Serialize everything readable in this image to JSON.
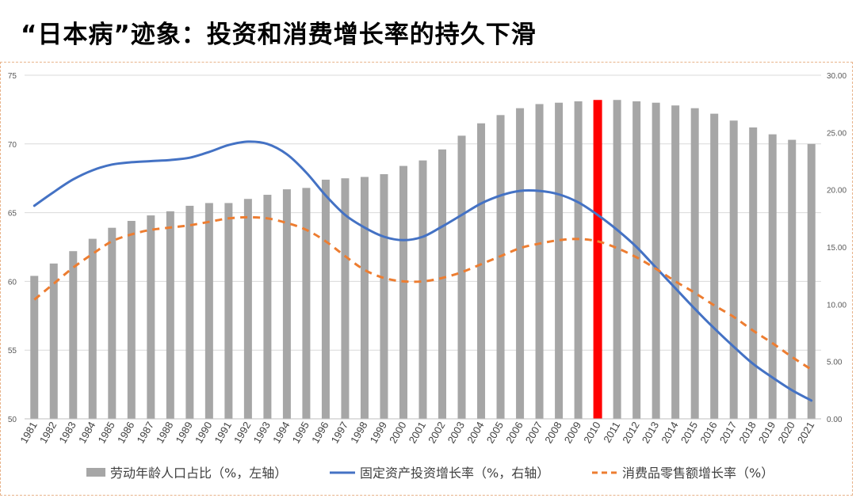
{
  "page": {
    "title": "“日本病”迹象：投资和消费增长率的持久下滑"
  },
  "chart_data": {
    "type": "bar",
    "x": [
      1981,
      1982,
      1983,
      1984,
      1985,
      1986,
      1987,
      1988,
      1989,
      1990,
      1991,
      1992,
      1993,
      1994,
      1995,
      1996,
      1997,
      1998,
      1999,
      2000,
      2001,
      2002,
      2003,
      2004,
      2005,
      2006,
      2007,
      2008,
      2009,
      2010,
      2011,
      2012,
      2013,
      2014,
      2015,
      2016,
      2017,
      2018,
      2019,
      2020,
      2021
    ],
    "x_tick_labels": [
      "1981",
      "1982",
      "1983",
      "1984",
      "1985",
      "1986",
      "1987",
      "1988",
      "1989",
      "1990",
      "1991",
      "1992",
      "1993",
      "1994",
      "1995",
      "1996",
      "1997",
      "1998",
      "1999",
      "2000",
      "2001",
      "2002",
      "2003",
      "2004",
      "2005",
      "2006",
      "2007",
      "2008",
      "2009",
      "2010",
      "2011",
      "2012",
      "2013",
      "2014",
      "2015",
      "2016",
      "2017",
      "2018",
      "2019",
      "2020",
      "2021"
    ],
    "left_axis": {
      "ylim": [
        50,
        75
      ],
      "ticks": [
        "50",
        "55",
        "60",
        "65",
        "70",
        "75"
      ],
      "tick_values": [
        50,
        55,
        60,
        65,
        70,
        75
      ]
    },
    "right_axis": {
      "ylim": [
        0,
        30
      ],
      "ticks": [
        "0.00",
        "5.00",
        "10.00",
        "15.00",
        "20.00",
        "25.00",
        "30.00"
      ],
      "tick_values": [
        0,
        5,
        10,
        15,
        20,
        25,
        30
      ]
    },
    "grid": true,
    "highlight": {
      "x": 2010,
      "color": "#ff0000"
    },
    "legend_position": "bottom",
    "series": [
      {
        "name": "劳动年龄人口占比（%，左轴）",
        "type": "bar",
        "axis": "left",
        "color": "#a6a6a6",
        "values": [
          60.4,
          61.3,
          62.2,
          63.1,
          63.9,
          64.4,
          64.8,
          65.1,
          65.5,
          65.7,
          65.7,
          66.0,
          66.3,
          66.7,
          66.8,
          67.4,
          67.5,
          67.6,
          67.8,
          68.4,
          68.8,
          69.6,
          70.6,
          71.5,
          72.1,
          72.6,
          72.9,
          73.0,
          73.1,
          73.2,
          73.2,
          73.1,
          73.0,
          72.8,
          72.6,
          72.2,
          71.7,
          71.2,
          70.7,
          70.3,
          70.0
        ]
      },
      {
        "name": "固定资产投资增长率（%，右轴）",
        "type": "line",
        "axis": "right",
        "color": "#4472c4",
        "dash": "solid",
        "values": [
          18.6,
          19.8,
          20.9,
          21.7,
          22.2,
          22.4,
          22.5,
          22.6,
          22.8,
          23.3,
          23.9,
          24.2,
          24.0,
          23.1,
          21.5,
          19.5,
          17.8,
          16.7,
          15.9,
          15.6,
          15.9,
          16.8,
          17.8,
          18.8,
          19.5,
          19.9,
          19.9,
          19.6,
          18.9,
          17.8,
          16.5,
          15.0,
          13.2,
          11.4,
          9.6,
          7.9,
          6.3,
          4.8,
          3.6,
          2.5,
          1.6
        ]
      },
      {
        "name": "消费品零售额增长率（%）",
        "type": "line",
        "axis": "right",
        "color": "#ed7d31",
        "dash": "dashed",
        "values": [
          10.4,
          11.8,
          13.2,
          14.4,
          15.5,
          16.1,
          16.5,
          16.7,
          16.9,
          17.2,
          17.5,
          17.6,
          17.5,
          17.1,
          16.5,
          15.5,
          14.2,
          13.0,
          12.3,
          12.0,
          12.0,
          12.3,
          12.8,
          13.5,
          14.2,
          14.9,
          15.3,
          15.6,
          15.7,
          15.5,
          14.9,
          14.1,
          13.1,
          12.0,
          11.0,
          9.9,
          8.9,
          7.7,
          6.6,
          5.4,
          4.3
        ]
      }
    ]
  }
}
